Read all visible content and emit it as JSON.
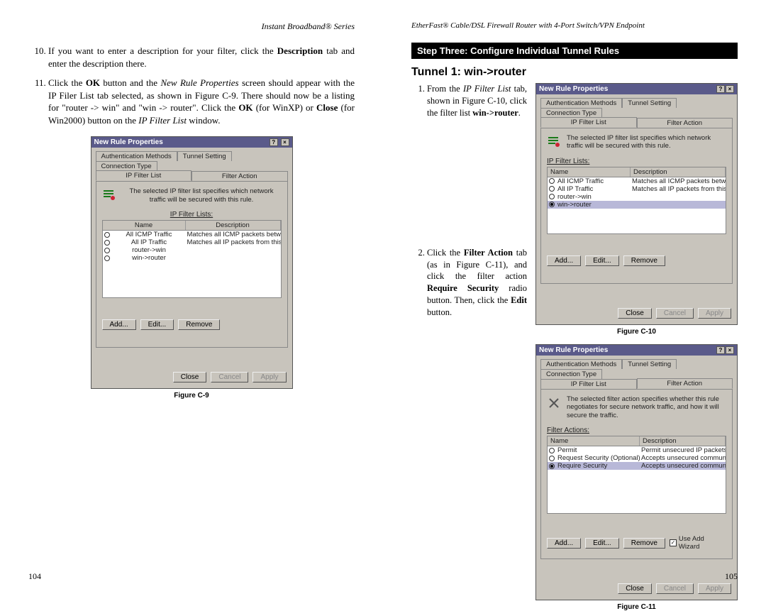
{
  "left": {
    "header": "Instant Broadband® Series",
    "list_start": 10,
    "items": [
      "If you want to enter a description for your filter, click the <b>Description</b> tab and enter the description there.",
      "Click the <b>OK</b> button and the <i>New Rule Properties</i> screen should appear with the IP Filer List tab selected, as shown in Figure C-9. There should now be a listing for \"router -> win\" and \"win -> router\". Click the <b>OK</b> (for WinXP) or <b>Close</b> (for Win2000) button on the <i>IP Filter List</i> window."
    ],
    "figcap": "Figure C-9",
    "pagenum": "104"
  },
  "right": {
    "header": "EtherFast® Cable/DSL Firewall Router with 4-Port Switch/VPN Endpoint",
    "step_header": "Step Three: Configure Individual Tunnel Rules",
    "tunnel_title": "Tunnel 1: win->router",
    "items": [
      "From the <i>IP Filter List</i> tab, shown in Figure C-10, click the filter list <b>win->router</b>.",
      "Click the <b>Filter Action</b> tab (as in Figure C-11), and click the filter action <b>Require Security</b> radio button. Then, click the <b>Edit</b> button."
    ],
    "figcap1": "Figure C-10",
    "figcap2": "Figure C-11",
    "pagenum": "105"
  },
  "dialog": {
    "title": "New Rule Properties",
    "tabs_top": [
      "Authentication Methods",
      "Tunnel Setting",
      "Connection Type"
    ],
    "tabs_bottom": [
      "IP Filter List",
      "Filter Action"
    ],
    "info_filter": "The selected IP filter list specifies which network traffic will be secured with this rule.",
    "info_action": "The selected filter action specifies whether this rule negotiates for secure network traffic, and how it will secure the traffic.",
    "filter_section": "IP Filter Lists:",
    "action_section": "Filter Actions:",
    "col_name": "Name",
    "col_desc": "Description",
    "filter_rows": [
      {
        "name": "All ICMP Traffic",
        "desc": "Matches all ICMP packets betw..."
      },
      {
        "name": "All IP Traffic",
        "desc": "Matches all IP packets from this ..."
      },
      {
        "name": "router->win",
        "desc": ""
      },
      {
        "name": "win->router",
        "desc": ""
      }
    ],
    "action_rows": [
      {
        "name": "Permit",
        "desc": "Permit unsecured IP packets to ..."
      },
      {
        "name": "Request Security (Optional)",
        "desc": "Accepts unsecured communicat..."
      },
      {
        "name": "Require Security",
        "desc": "Accepts unsecured communicat..."
      }
    ],
    "btn_add": "Add...",
    "btn_edit": "Edit...",
    "btn_remove": "Remove",
    "btn_close": "Close",
    "btn_cancel": "Cancel",
    "btn_apply": "Apply",
    "chk_wizard": "Use Add Wizard"
  }
}
